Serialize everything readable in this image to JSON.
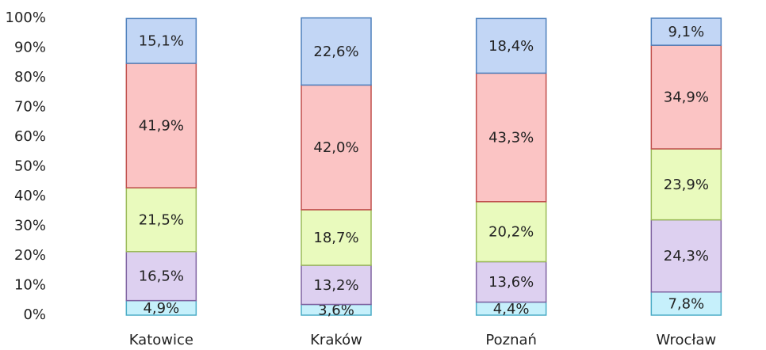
{
  "chart_data": {
    "type": "stacked_bar",
    "categories": [
      "Katowice",
      "Kraków",
      "Poznań",
      "Wrocław"
    ],
    "series": [
      {
        "color": "#c6f0fb",
        "edgecolor": "#4bacc6",
        "values": [
          4.9,
          3.6,
          4.4,
          7.8
        ],
        "value_labels": [
          "4,9%",
          "3,6%",
          "4,4%",
          "7,8%"
        ]
      },
      {
        "color": "#ddd0f0",
        "edgecolor": "#8064a2",
        "values": [
          16.5,
          13.2,
          13.6,
          24.3
        ],
        "value_labels": [
          "16,5%",
          "13,2%",
          "13,6%",
          "24,3%"
        ]
      },
      {
        "color": "#e9fabd",
        "edgecolor": "#9bbb59",
        "values": [
          21.5,
          18.7,
          20.2,
          23.9
        ],
        "value_labels": [
          "21,5%",
          "18,7%",
          "20,2%",
          "23,9%"
        ]
      },
      {
        "color": "#fbc4c4",
        "edgecolor": "#c0504d",
        "values": [
          41.9,
          42.0,
          43.3,
          34.9
        ],
        "value_labels": [
          "41,9%",
          "42,0%",
          "43,3%",
          "34,9%"
        ]
      },
      {
        "color": "#c2d6f5",
        "edgecolor": "#4f81bd",
        "values": [
          15.1,
          22.6,
          18.4,
          9.1
        ],
        "value_labels": [
          "15,1%",
          "22,6%",
          "18,4%",
          "9,1%"
        ]
      }
    ],
    "ylim": [
      0,
      100
    ],
    "yticks": [
      {
        "value": 0,
        "label": "0%"
      },
      {
        "value": 10,
        "label": "10%"
      },
      {
        "value": 20,
        "label": "20%"
      },
      {
        "value": 30,
        "label": "30%"
      },
      {
        "value": 40,
        "label": "40%"
      },
      {
        "value": 50,
        "label": "50%"
      },
      {
        "value": 60,
        "label": "60%"
      },
      {
        "value": 70,
        "label": "70%"
      },
      {
        "value": 80,
        "label": "80%"
      },
      {
        "value": 90,
        "label": "90%"
      },
      {
        "value": 100,
        "label": "100%"
      }
    ],
    "grid": false
  }
}
